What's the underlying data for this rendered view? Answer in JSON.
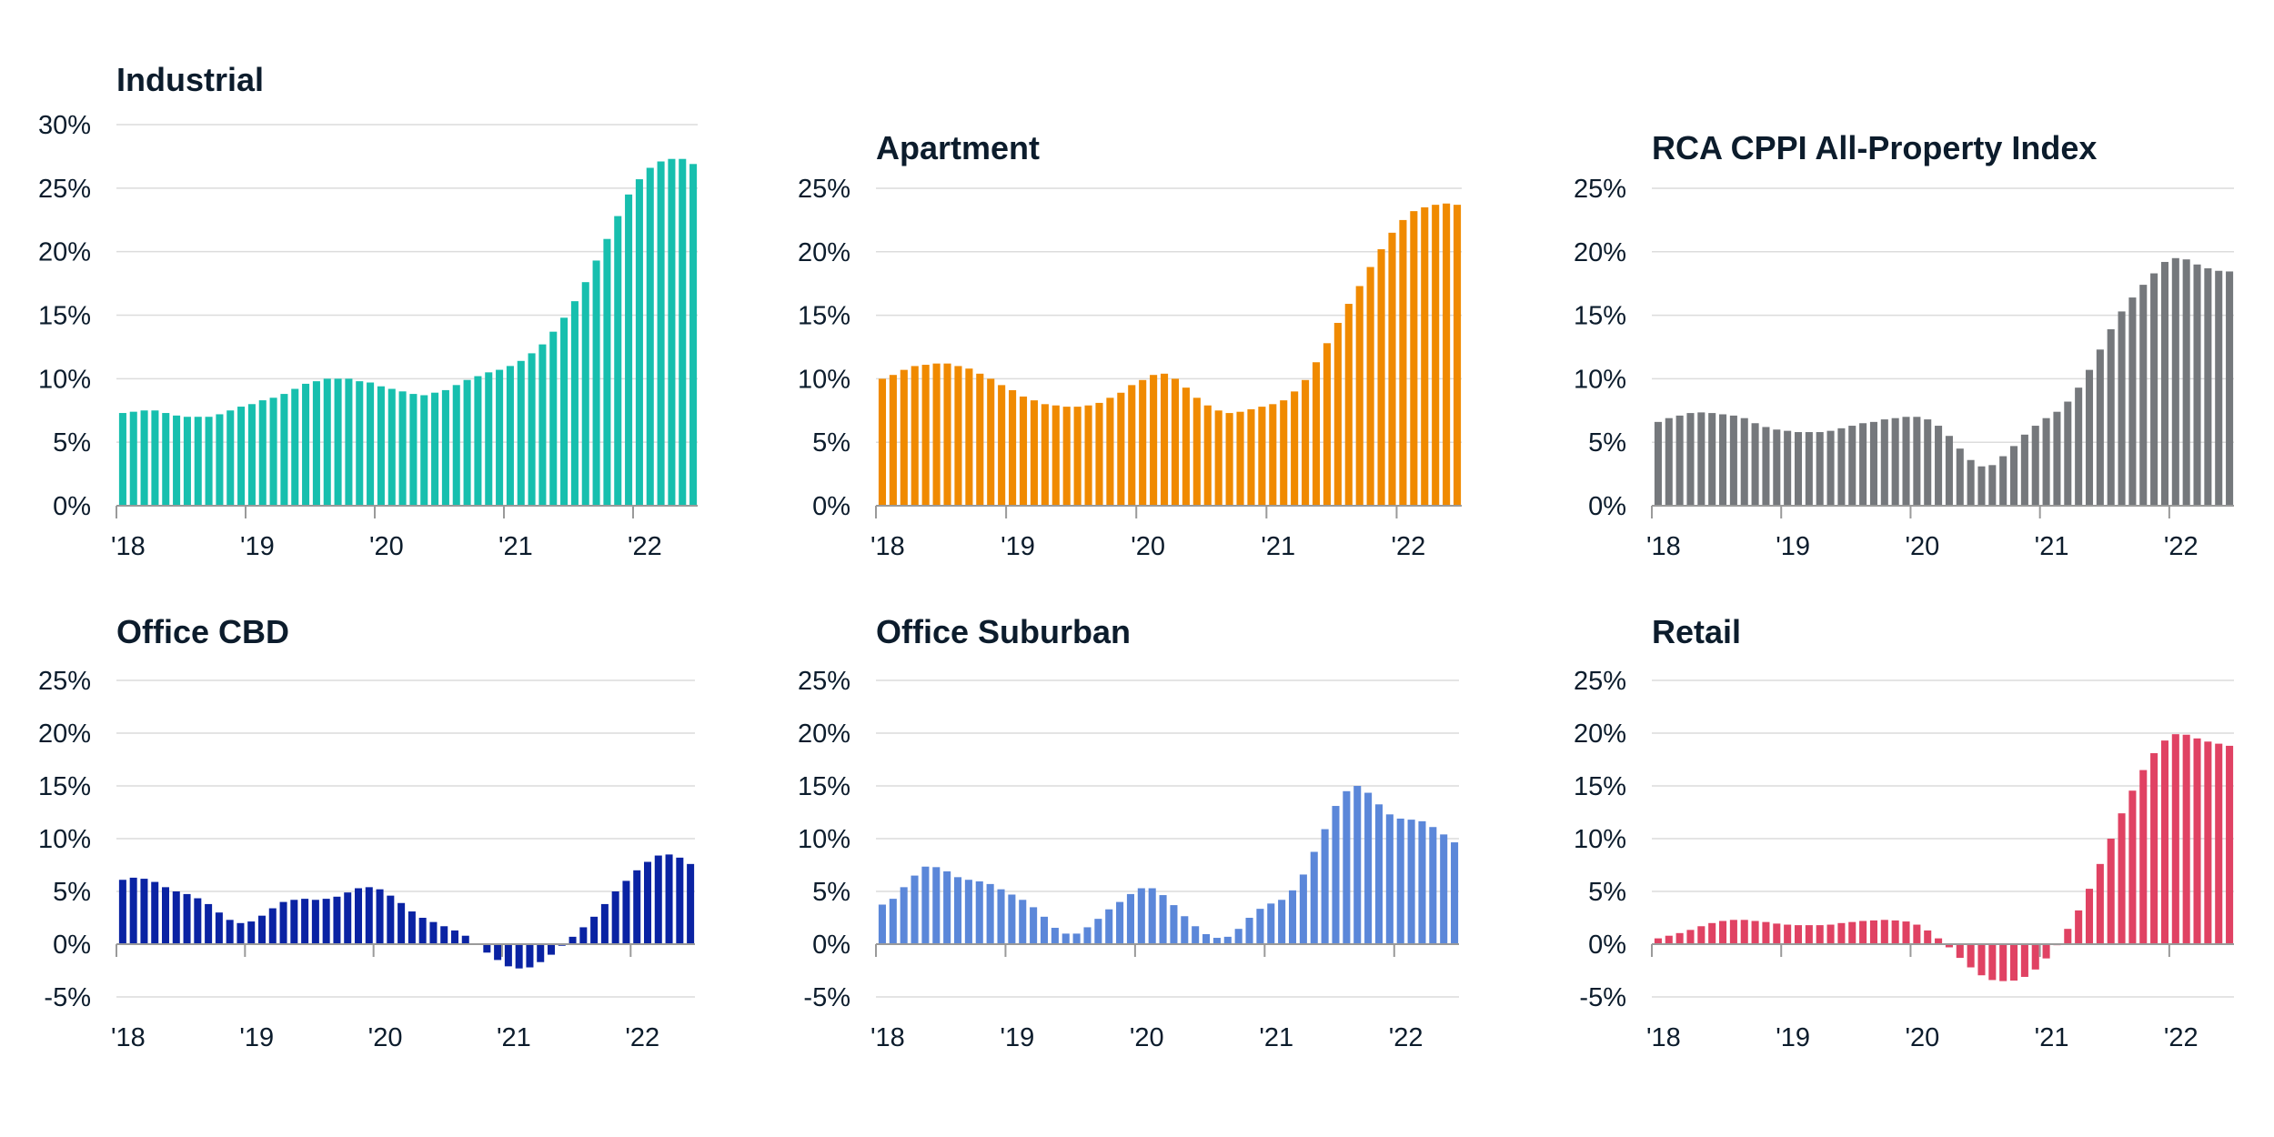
{
  "chart_data": [
    {
      "type": "bar",
      "title": "Industrial",
      "color": "#17bfae",
      "ylim": [
        0,
        30
      ],
      "yticks": [
        0,
        5,
        10,
        15,
        20,
        25,
        30
      ],
      "ytick_labels": [
        "0%",
        "5%",
        "10%",
        "15%",
        "20%",
        "25%",
        "30%"
      ],
      "xtick_labels": [
        "'18",
        "'19",
        "'20",
        "'21",
        "'22"
      ],
      "x_period": "monthly, Jan 2018 - Jun 2022",
      "grid": true,
      "values": [
        7.3,
        7.4,
        7.5,
        7.5,
        7.3,
        7.1,
        7.0,
        7.0,
        7.0,
        7.2,
        7.5,
        7.8,
        8.0,
        8.3,
        8.5,
        8.8,
        9.2,
        9.6,
        9.8,
        10.0,
        10.0,
        10.0,
        9.8,
        9.7,
        9.4,
        9.2,
        9.0,
        8.8,
        8.7,
        8.9,
        9.1,
        9.5,
        9.9,
        10.2,
        10.5,
        10.7,
        11.0,
        11.4,
        12.0,
        12.7,
        13.7,
        14.8,
        16.1,
        17.6,
        19.3,
        21.0,
        22.8,
        24.5,
        25.7,
        26.6,
        27.1,
        27.3,
        27.3,
        26.9
      ]
    },
    {
      "type": "bar",
      "title": "Apartment",
      "color": "#f08a00",
      "ylim": [
        0,
        25
      ],
      "yticks": [
        0,
        5,
        10,
        15,
        20,
        25
      ],
      "ytick_labels": [
        "0%",
        "5%",
        "10%",
        "15%",
        "20%",
        "25%"
      ],
      "xtick_labels": [
        "'18",
        "'19",
        "'20",
        "'21",
        "'22"
      ],
      "x_period": "monthly, Jan 2018 - Jun 2022",
      "grid": true,
      "values": [
        10.0,
        10.3,
        10.7,
        11.0,
        11.1,
        11.2,
        11.2,
        11.0,
        10.8,
        10.4,
        10.0,
        9.5,
        9.1,
        8.6,
        8.3,
        8.0,
        7.9,
        7.8,
        7.8,
        7.9,
        8.1,
        8.5,
        8.9,
        9.5,
        9.9,
        10.3,
        10.4,
        10.0,
        9.3,
        8.5,
        7.9,
        7.5,
        7.3,
        7.4,
        7.6,
        7.8,
        8.0,
        8.3,
        9.0,
        9.9,
        11.3,
        12.8,
        14.4,
        15.9,
        17.3,
        18.8,
        20.2,
        21.5,
        22.5,
        23.2,
        23.5,
        23.7,
        23.8,
        23.7
      ]
    },
    {
      "type": "bar",
      "title": "RCA CPPI All-Property Index",
      "color": "#75787c",
      "ylim": [
        0,
        25
      ],
      "yticks": [
        0,
        5,
        10,
        15,
        20,
        25
      ],
      "ytick_labels": [
        "0%",
        "5%",
        "10%",
        "15%",
        "20%",
        "25%"
      ],
      "xtick_labels": [
        "'18",
        "'19",
        "'20",
        "'21",
        "'22"
      ],
      "x_period": "monthly, Jan 2018 - Jun 2022",
      "grid": true,
      "values": [
        6.6,
        6.9,
        7.1,
        7.3,
        7.35,
        7.3,
        7.2,
        7.1,
        6.9,
        6.5,
        6.2,
        6.0,
        5.9,
        5.8,
        5.8,
        5.8,
        5.9,
        6.1,
        6.3,
        6.5,
        6.6,
        6.8,
        6.9,
        7.0,
        7.0,
        6.8,
        6.3,
        5.5,
        4.5,
        3.6,
        3.1,
        3.2,
        3.9,
        4.7,
        5.6,
        6.3,
        6.9,
        7.4,
        8.2,
        9.3,
        10.7,
        12.3,
        13.9,
        15.3,
        16.4,
        17.4,
        18.3,
        19.2,
        19.5,
        19.4,
        19.0,
        18.7,
        18.5,
        18.45
      ]
    },
    {
      "type": "bar",
      "title": "Office CBD",
      "color": "#0a23a3",
      "ylim": [
        -5,
        25
      ],
      "yticks": [
        -5,
        0,
        5,
        10,
        15,
        20,
        25
      ],
      "ytick_labels": [
        "-5%",
        "0%",
        "5%",
        "10%",
        "15%",
        "20%",
        "25%"
      ],
      "xtick_labels": [
        "'18",
        "'19",
        "'20",
        "'21",
        "'22"
      ],
      "x_period": "monthly, Jan 2018 - Jun 2022",
      "grid": true,
      "values": [
        6.1,
        6.3,
        6.2,
        5.9,
        5.4,
        5.0,
        4.75,
        4.35,
        3.8,
        3.0,
        2.3,
        2.0,
        2.15,
        2.7,
        3.4,
        4.0,
        4.2,
        4.3,
        4.2,
        4.3,
        4.5,
        4.9,
        5.3,
        5.4,
        5.2,
        4.6,
        3.9,
        3.1,
        2.5,
        2.1,
        1.7,
        1.3,
        0.8,
        -0.05,
        -0.8,
        -1.5,
        -2.1,
        -2.3,
        -2.2,
        -1.7,
        -1.0,
        -0.15,
        0.7,
        1.6,
        2.6,
        3.8,
        5.0,
        6.0,
        7.0,
        7.8,
        8.4,
        8.5,
        8.2,
        7.6
      ]
    },
    {
      "type": "bar",
      "title": "Office Suburban",
      "color": "#5b87d9",
      "ylim": [
        -5,
        25
      ],
      "yticks": [
        -5,
        0,
        5,
        10,
        15,
        20,
        25
      ],
      "ytick_labels": [
        "-5%",
        "0%",
        "5%",
        "10%",
        "15%",
        "20%",
        "25%"
      ],
      "xtick_labels": [
        "'18",
        "'19",
        "'20",
        "'21",
        "'22"
      ],
      "x_period": "monthly, Jan 2018 - Jun 2022",
      "grid": true,
      "values": [
        3.75,
        4.3,
        5.4,
        6.5,
        7.35,
        7.3,
        6.9,
        6.35,
        6.1,
        5.95,
        5.7,
        5.2,
        4.7,
        4.2,
        3.5,
        2.6,
        1.55,
        1.0,
        1.0,
        1.6,
        2.4,
        3.3,
        4.0,
        4.75,
        5.3,
        5.3,
        4.65,
        3.7,
        2.65,
        1.7,
        0.95,
        0.6,
        0.7,
        1.45,
        2.5,
        3.35,
        3.85,
        4.2,
        5.1,
        6.6,
        8.75,
        10.9,
        13.1,
        14.5,
        15.0,
        14.35,
        13.25,
        12.3,
        11.9,
        11.8,
        11.65,
        11.1,
        10.4,
        9.65
      ]
    },
    {
      "type": "bar",
      "title": "Retail",
      "color": "#e04263",
      "ylim": [
        -5,
        25
      ],
      "yticks": [
        -5,
        0,
        5,
        10,
        15,
        20,
        25
      ],
      "ytick_labels": [
        "-5%",
        "0%",
        "5%",
        "10%",
        "15%",
        "20%",
        "25%"
      ],
      "xtick_labels": [
        "'18",
        "'19",
        "'20",
        "'21",
        "'22"
      ],
      "x_period": "monthly, Jan 2018 - Jun 2022",
      "grid": true,
      "values": [
        0.55,
        0.8,
        1.05,
        1.35,
        1.7,
        2.0,
        2.2,
        2.3,
        2.3,
        2.2,
        2.1,
        1.95,
        1.85,
        1.8,
        1.8,
        1.8,
        1.85,
        2.0,
        2.1,
        2.2,
        2.25,
        2.3,
        2.25,
        2.15,
        1.85,
        1.3,
        0.55,
        -0.3,
        -1.3,
        -2.2,
        -2.95,
        -3.4,
        -3.5,
        -3.45,
        -3.1,
        -2.4,
        -1.35,
        -0.1,
        1.45,
        3.2,
        5.25,
        7.6,
        10.0,
        12.4,
        14.55,
        16.5,
        18.1,
        19.3,
        19.9,
        19.85,
        19.5,
        19.2,
        19.0,
        18.8
      ]
    }
  ]
}
